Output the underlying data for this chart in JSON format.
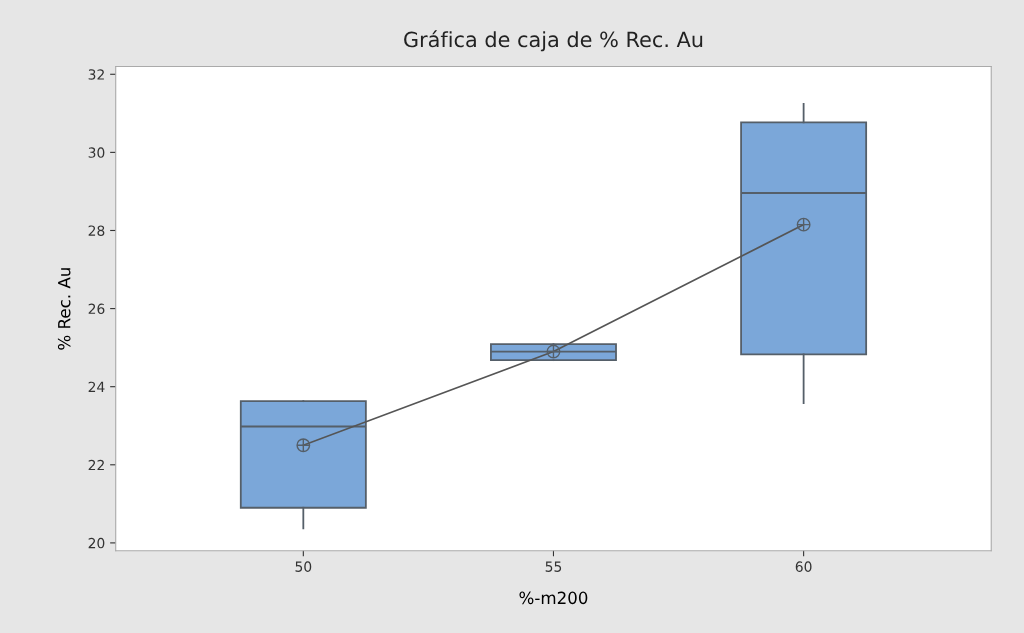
{
  "chart_data": {
    "type": "box",
    "title": "Gráfica de caja de % Rec. Au",
    "xlabel": "%-m200",
    "ylabel": "% Rec. Au",
    "categories": [
      "50",
      "55",
      "60"
    ],
    "ylim": [
      19.8,
      32.2
    ],
    "yticks": [
      20,
      22,
      24,
      26,
      28,
      30,
      32
    ],
    "grid": false,
    "legend": false,
    "series": [
      {
        "color": "#7ba7d9",
        "boxes": [
          {
            "low": 20.37,
            "q1": 20.9,
            "median": 22.98,
            "q3": 23.63,
            "high": 23.63,
            "mean": 22.5
          },
          {
            "low": 24.68,
            "q1": 24.68,
            "median": 24.9,
            "q3": 25.09,
            "high": 25.09,
            "mean": 24.9
          },
          {
            "low": 23.58,
            "q1": 24.83,
            "median": 28.96,
            "q3": 30.77,
            "high": 31.24,
            "mean": 28.15
          }
        ]
      },
      {
        "type": "line",
        "color": "#555555",
        "marker": "none",
        "line_style": "solid",
        "values": [
          22.5,
          24.9,
          28.15
        ]
      }
    ]
  }
}
